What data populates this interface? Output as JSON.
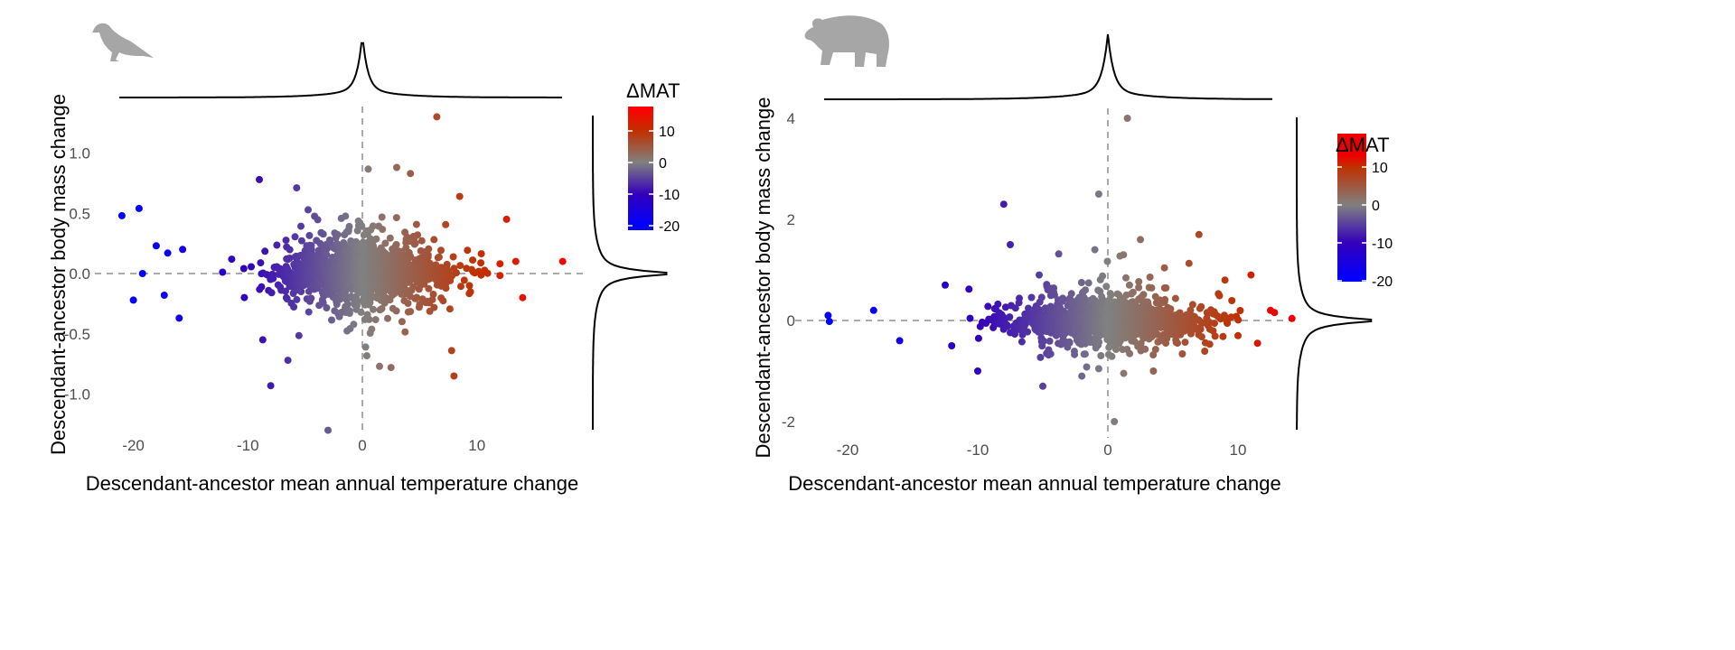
{
  "chart_data": [
    {
      "type": "scatter",
      "title": "",
      "silhouette": "bird-icon",
      "xlabel": "Descendant-ancestor mean annual temperature change",
      "ylabel": "Descendant-ancestor body mass change",
      "xlim": [
        -22.5,
        20
      ],
      "ylim": [
        -1.35,
        1.4
      ],
      "x_ticks": [
        -20,
        -10,
        0,
        10
      ],
      "x_tick_labels": [
        "-20",
        "-10",
        "0",
        "10"
      ],
      "y_ticks": [
        -1.0,
        -0.5,
        0.0,
        0.5,
        1.0
      ],
      "y_tick_labels": [
        "-1.0",
        "-0.5",
        "0.0",
        "0.5",
        "1.0"
      ],
      "reference_lines": {
        "x": 0,
        "y": 0
      },
      "color_scale": {
        "title": "ΔMAT",
        "range": [
          -20,
          17
        ],
        "ticks": [
          -20,
          -10,
          0,
          10
        ],
        "tick_labels": [
          "-20",
          "-10",
          "0",
          "10"
        ],
        "stops": [
          {
            "v": -20,
            "c": "#0000ff"
          },
          {
            "v": -10,
            "c": "#3300bb"
          },
          {
            "v": 0,
            "c": "#808080"
          },
          {
            "v": 10,
            "c": "#c03000"
          },
          {
            "v": 17,
            "c": "#ff0000"
          }
        ]
      },
      "cloud": {
        "n": 1500,
        "x_sd": 4.3,
        "y_scale": 0.11,
        "seed": 7
      },
      "outliers": [
        [
          17.5,
          0.1
        ],
        [
          6.5,
          1.3
        ],
        [
          -21,
          0.48
        ],
        [
          -19.5,
          0.54
        ],
        [
          -3,
          -1.3
        ],
        [
          -8,
          -0.93
        ],
        [
          8,
          -0.85
        ],
        [
          14,
          -0.2
        ],
        [
          -18,
          0.23
        ],
        [
          -16,
          -0.37
        ],
        [
          -20,
          -0.22
        ],
        [
          -9,
          0.78
        ],
        [
          3,
          0.88
        ],
        [
          4.2,
          0.83
        ],
        [
          8.5,
          0.64
        ],
        [
          -17,
          0.17
        ],
        [
          -19.2,
          0
        ],
        [
          -17.3,
          -0.18
        ],
        [
          -15.7,
          0.2
        ],
        [
          -6.5,
          -0.72
        ],
        [
          -8.7,
          -0.55
        ],
        [
          12.6,
          0.45
        ],
        [
          13.4,
          0.1
        ],
        [
          1.5,
          -0.77
        ],
        [
          7.8,
          -0.64
        ],
        [
          2.5,
          -0.78
        ]
      ],
      "legend": "right"
    },
    {
      "type": "scatter",
      "title": "",
      "silhouette": "bear-icon",
      "xlabel": "Descendant-ancestor mean annual temperature change",
      "ylabel": "Descendant-ancestor body mass change",
      "xlim": [
        -23,
        14
      ],
      "ylim": [
        -2.1,
        4.1
      ],
      "x_ticks": [
        -20,
        -10,
        0,
        10
      ],
      "x_tick_labels": [
        "-20",
        "-10",
        "0",
        "10"
      ],
      "y_ticks": [
        -2,
        0,
        2,
        4
      ],
      "y_tick_labels": [
        "-2",
        "0",
        "2",
        "4"
      ],
      "reference_lines": {
        "x": 0,
        "y": 0
      },
      "color_scale": {
        "title": "ΔMAT",
        "range": [
          -20,
          13
        ],
        "ticks": [
          -20,
          -10,
          0,
          10
        ],
        "tick_labels": [
          "-20",
          "-10",
          "0",
          "10"
        ],
        "stops": [
          {
            "v": -20,
            "c": "#0000ff"
          },
          {
            "v": -10,
            "c": "#3300bb"
          },
          {
            "v": 0,
            "c": "#808080"
          },
          {
            "v": 10,
            "c": "#c03000"
          },
          {
            "v": 13,
            "c": "#ee0000"
          }
        ]
      },
      "cloud": {
        "n": 1300,
        "x_sd": 4.2,
        "y_scale": 0.2,
        "seed": 11
      },
      "outliers": [
        [
          -21.5,
          0.1
        ],
        [
          -21.4,
          -0.02
        ],
        [
          1.5,
          4
        ],
        [
          0.5,
          -2
        ],
        [
          -8,
          2.3
        ],
        [
          -0.7,
          2.5
        ],
        [
          7,
          1.7
        ],
        [
          -5,
          -1.3
        ],
        [
          12.5,
          0.2
        ],
        [
          11,
          0.9
        ],
        [
          -10,
          -1
        ],
        [
          1.2,
          1.3
        ],
        [
          -7.5,
          1.5
        ],
        [
          -18,
          0.2
        ],
        [
          -16,
          -0.4
        ],
        [
          -12,
          -0.5
        ],
        [
          -12.5,
          0.7
        ],
        [
          10,
          -0.3
        ],
        [
          11.5,
          -0.45
        ],
        [
          -2,
          -1.1
        ],
        [
          2.5,
          1.6
        ],
        [
          -1,
          1.4
        ],
        [
          9,
          0.8
        ],
        [
          3.5,
          -1
        ]
      ],
      "legend": "right"
    }
  ]
}
